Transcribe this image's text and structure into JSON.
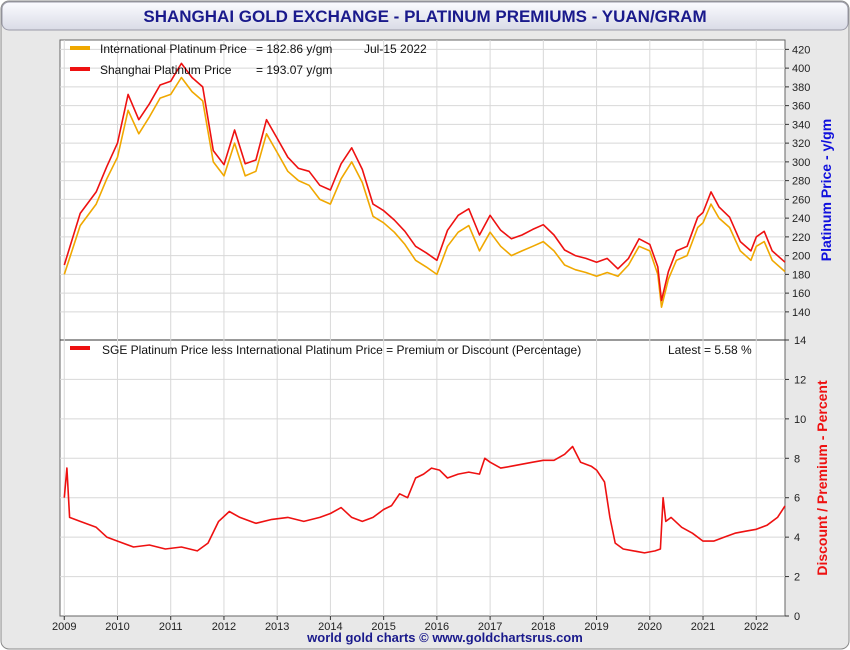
{
  "title": "SHANGHAI GOLD EXCHANGE - PLATINUM PREMIUMS - YUAN/GRAM",
  "footer": "world gold charts © www.goldchartsrus.com",
  "colors": {
    "frame_bg": "#e6e6e6",
    "title_bg_top": "#f2f2f8",
    "title_text": "#1a1a8c",
    "international": "#f0a800",
    "shanghai": "#ee1111",
    "premium": "#ee1111",
    "price_axis_label": "#1010dd",
    "premium_axis_label": "#ee1111",
    "grid": "#d8d8d8"
  },
  "chart_data": [
    {
      "type": "line",
      "panel": "price",
      "ylabel": "Platinum Price - y/gm",
      "ylim": [
        110,
        430
      ],
      "yticks": [
        140,
        160,
        180,
        200,
        220,
        240,
        260,
        280,
        300,
        320,
        340,
        360,
        380,
        400,
        420
      ],
      "xlim": [
        2008.92,
        2022.54
      ],
      "date_label": "Jul-15  2022",
      "series": [
        {
          "name": "International Platinum Price",
          "latest_text": "= 182.86 y/gm",
          "color": "#f0a800",
          "x": [
            2009.0,
            2009.3,
            2009.6,
            2009.8,
            2010.0,
            2010.2,
            2010.4,
            2010.6,
            2010.8,
            2011.0,
            2011.2,
            2011.4,
            2011.6,
            2011.8,
            2012.0,
            2012.2,
            2012.4,
            2012.6,
            2012.8,
            2013.0,
            2013.2,
            2013.4,
            2013.6,
            2013.8,
            2014.0,
            2014.2,
            2014.4,
            2014.6,
            2014.8,
            2015.0,
            2015.2,
            2015.4,
            2015.6,
            2015.8,
            2016.0,
            2016.2,
            2016.4,
            2016.6,
            2016.8,
            2017.0,
            2017.2,
            2017.4,
            2017.6,
            2017.8,
            2018.0,
            2018.2,
            2018.4,
            2018.6,
            2018.8,
            2019.0,
            2019.2,
            2019.4,
            2019.6,
            2019.8,
            2020.0,
            2020.15,
            2020.22,
            2020.35,
            2020.5,
            2020.7,
            2020.9,
            2021.0,
            2021.15,
            2021.3,
            2021.5,
            2021.7,
            2021.9,
            2022.0,
            2022.15,
            2022.3,
            2022.54
          ],
          "values": [
            180,
            232,
            255,
            282,
            305,
            355,
            330,
            348,
            368,
            372,
            390,
            375,
            365,
            300,
            285,
            320,
            285,
            290,
            330,
            310,
            290,
            280,
            275,
            260,
            255,
            282,
            300,
            278,
            242,
            235,
            225,
            212,
            195,
            188,
            180,
            210,
            225,
            232,
            205,
            225,
            210,
            200,
            205,
            210,
            215,
            205,
            190,
            185,
            182,
            178,
            182,
            178,
            190,
            210,
            205,
            180,
            145,
            175,
            195,
            200,
            230,
            235,
            255,
            240,
            230,
            205,
            195,
            210,
            215,
            195,
            183
          ]
        },
        {
          "name": "Shanghai Platinum Price",
          "latest_text": "= 193.07 y/gm",
          "color": "#ee1111",
          "x": [
            2009.0,
            2009.3,
            2009.6,
            2009.8,
            2010.0,
            2010.2,
            2010.4,
            2010.6,
            2010.8,
            2011.0,
            2011.2,
            2011.4,
            2011.6,
            2011.8,
            2012.0,
            2012.2,
            2012.4,
            2012.6,
            2012.8,
            2013.0,
            2013.2,
            2013.4,
            2013.6,
            2013.8,
            2014.0,
            2014.2,
            2014.4,
            2014.6,
            2014.8,
            2015.0,
            2015.2,
            2015.4,
            2015.6,
            2015.8,
            2016.0,
            2016.2,
            2016.4,
            2016.6,
            2016.8,
            2017.0,
            2017.2,
            2017.4,
            2017.6,
            2017.8,
            2018.0,
            2018.2,
            2018.4,
            2018.6,
            2018.8,
            2019.0,
            2019.2,
            2019.4,
            2019.6,
            2019.8,
            2020.0,
            2020.15,
            2020.22,
            2020.35,
            2020.5,
            2020.7,
            2020.9,
            2021.0,
            2021.15,
            2021.3,
            2021.5,
            2021.7,
            2021.9,
            2022.0,
            2022.15,
            2022.3,
            2022.54
          ],
          "values": [
            190,
            245,
            268,
            295,
            320,
            372,
            345,
            362,
            382,
            386,
            405,
            390,
            380,
            312,
            297,
            334,
            298,
            302,
            345,
            325,
            305,
            293,
            290,
            275,
            270,
            298,
            315,
            292,
            255,
            248,
            238,
            226,
            210,
            203,
            195,
            227,
            243,
            250,
            222,
            243,
            227,
            218,
            222,
            228,
            233,
            222,
            206,
            200,
            197,
            193,
            197,
            186,
            197,
            218,
            212,
            188,
            152,
            183,
            205,
            210,
            241,
            246,
            268,
            252,
            241,
            215,
            205,
            220,
            226,
            205,
            193
          ]
        }
      ]
    },
    {
      "type": "line",
      "panel": "premium",
      "ylabel": "Discount / Premium - Percent",
      "ylim": [
        0,
        14
      ],
      "yticks": [
        0,
        2,
        4,
        6,
        8,
        10,
        12,
        14
      ],
      "xlim": [
        2008.92,
        2022.54
      ],
      "xticks": [
        "2009",
        "2010",
        "2011",
        "2012",
        "2013",
        "2014",
        "2015",
        "2016",
        "2017",
        "2018",
        "2019",
        "2020",
        "2021",
        "2022"
      ],
      "series": [
        {
          "name": "SGE Platinum Price less International Platinum Price = Premium or Discount (Percentage)",
          "latest_text": "Latest = 5.58 %",
          "color": "#ee1111",
          "x": [
            2009.0,
            2009.05,
            2009.1,
            2009.3,
            2009.6,
            2009.8,
            2010.0,
            2010.3,
            2010.6,
            2010.9,
            2011.2,
            2011.5,
            2011.7,
            2011.9,
            2012.1,
            2012.3,
            2012.6,
            2012.9,
            2013.2,
            2013.5,
            2013.8,
            2014.0,
            2014.2,
            2014.4,
            2014.6,
            2014.8,
            2015.0,
            2015.15,
            2015.3,
            2015.45,
            2015.6,
            2015.75,
            2015.9,
            2016.05,
            2016.2,
            2016.4,
            2016.6,
            2016.8,
            2016.9,
            2017.0,
            2017.2,
            2017.4,
            2017.6,
            2017.8,
            2018.0,
            2018.2,
            2018.4,
            2018.55,
            2018.7,
            2018.9,
            2019.0,
            2019.15,
            2019.25,
            2019.35,
            2019.5,
            2019.7,
            2019.9,
            2020.1,
            2020.2,
            2020.25,
            2020.3,
            2020.4,
            2020.6,
            2020.8,
            2021.0,
            2021.2,
            2021.4,
            2021.6,
            2021.8,
            2022.0,
            2022.2,
            2022.4,
            2022.54
          ],
          "values": [
            6.0,
            7.5,
            5.0,
            4.8,
            4.5,
            4.0,
            3.8,
            3.5,
            3.6,
            3.4,
            3.5,
            3.3,
            3.7,
            4.8,
            5.3,
            5.0,
            4.7,
            4.9,
            5.0,
            4.8,
            5.0,
            5.2,
            5.5,
            5.0,
            4.8,
            5.0,
            5.4,
            5.6,
            6.2,
            6.0,
            7.0,
            7.2,
            7.5,
            7.4,
            7.0,
            7.2,
            7.3,
            7.2,
            8.0,
            7.8,
            7.5,
            7.6,
            7.7,
            7.8,
            7.9,
            7.9,
            8.2,
            8.6,
            7.8,
            7.6,
            7.4,
            6.8,
            5.0,
            3.7,
            3.4,
            3.3,
            3.2,
            3.3,
            3.4,
            6.0,
            4.8,
            5.0,
            4.5,
            4.2,
            3.8,
            3.8,
            4.0,
            4.2,
            4.3,
            4.4,
            4.6,
            5.0,
            5.58
          ]
        }
      ]
    }
  ]
}
